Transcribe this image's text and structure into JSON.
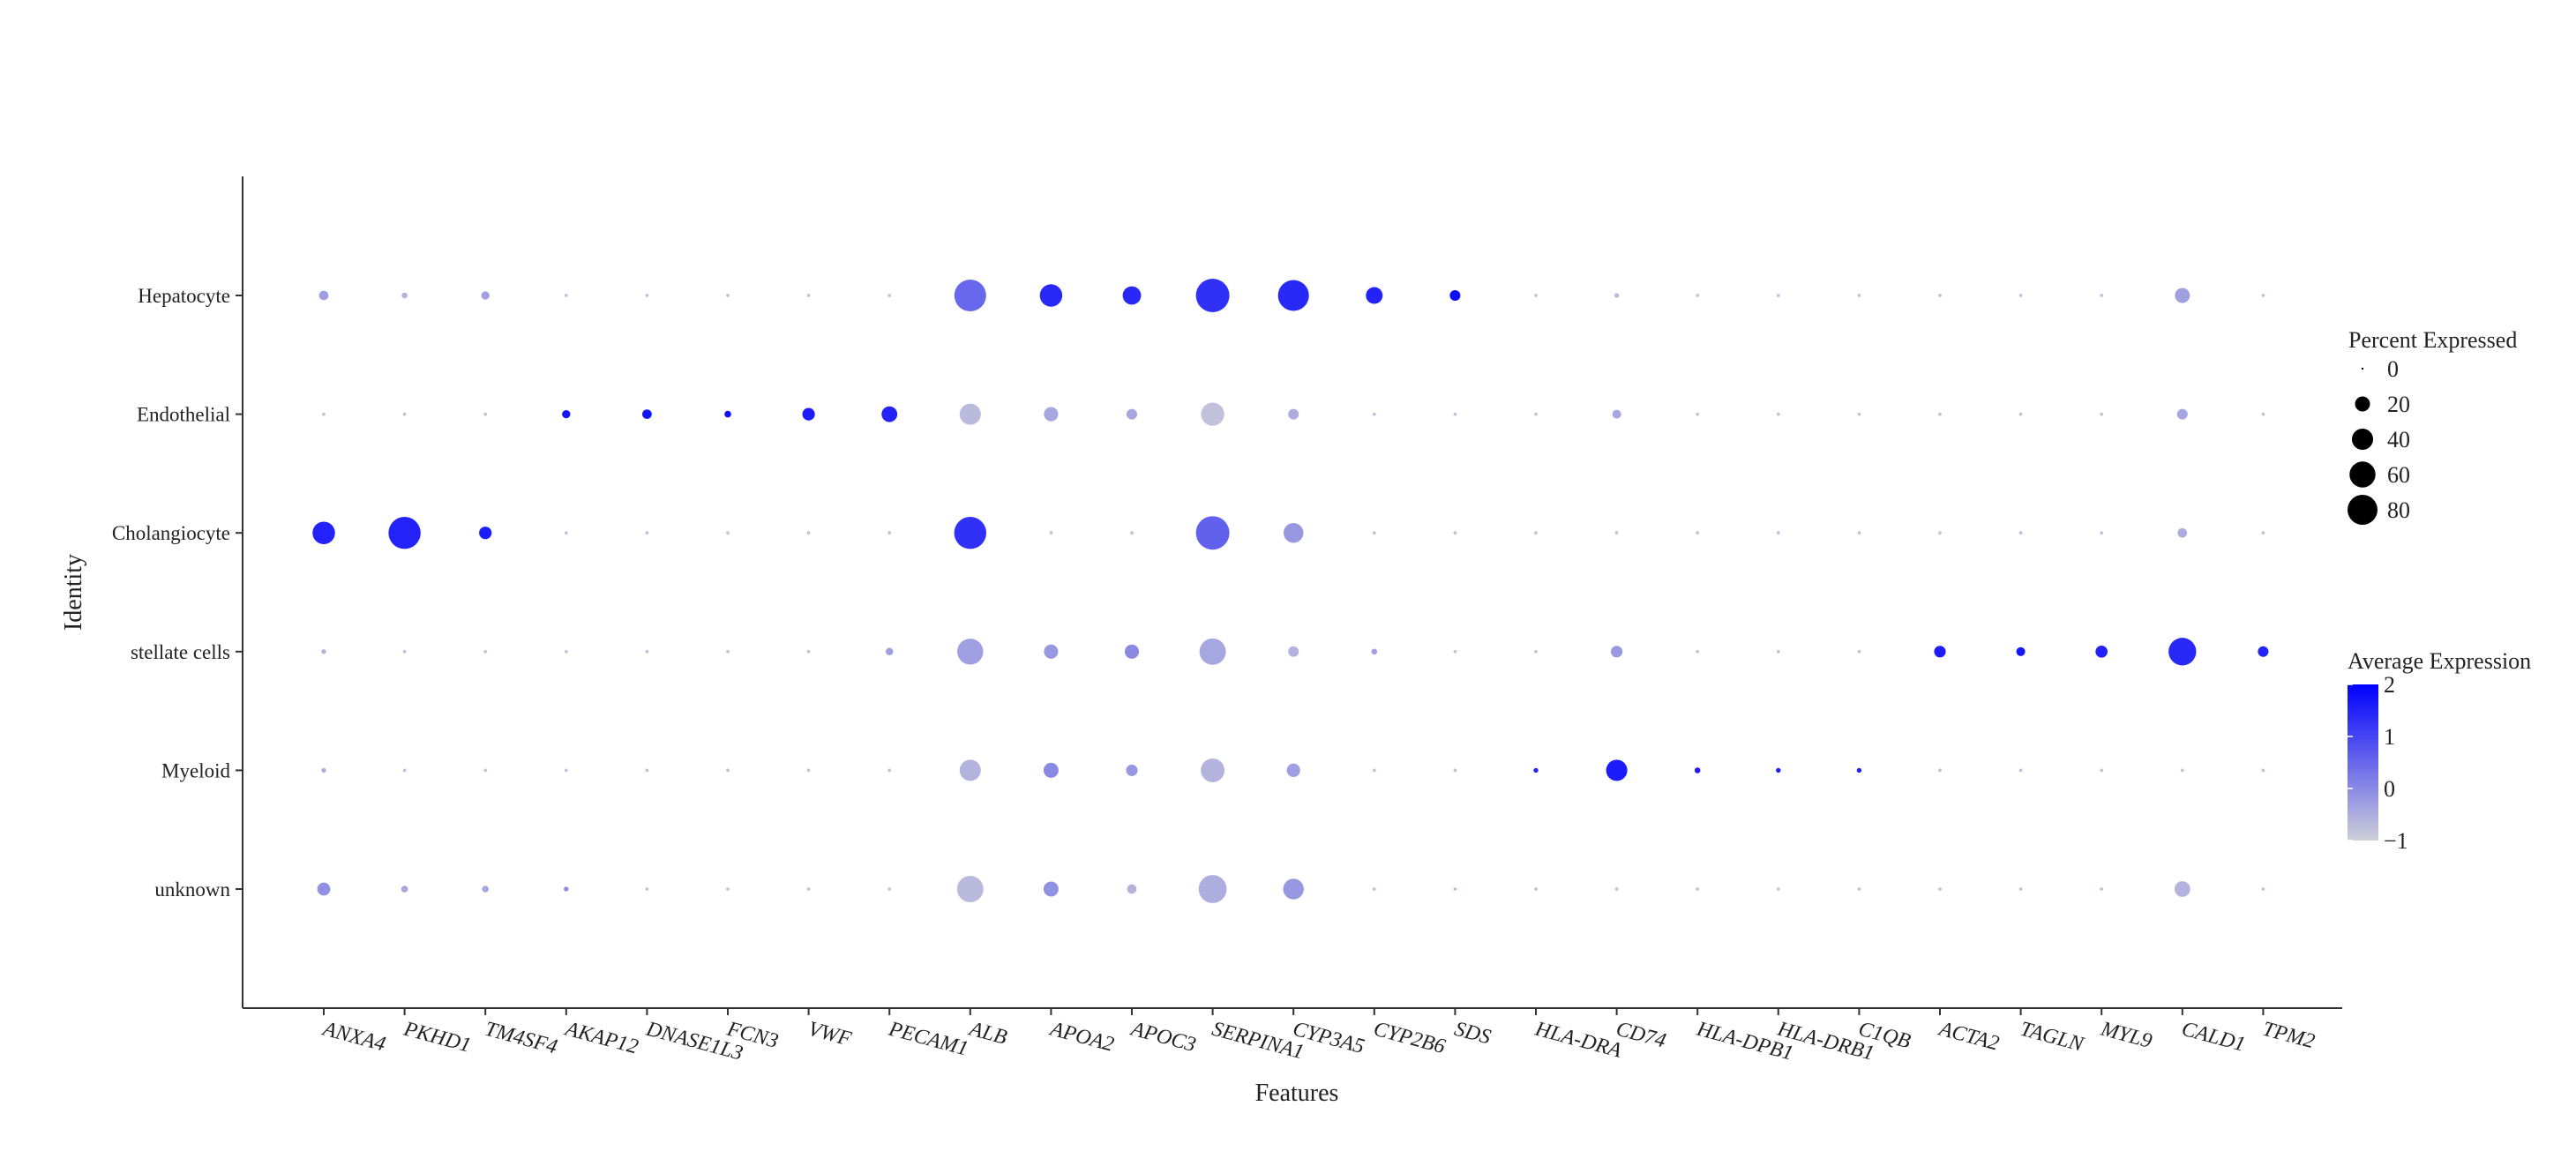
{
  "chart_data": {
    "type": "dotplot",
    "xlabel": "Features",
    "ylabel": "Identity",
    "features": [
      "ANXA4",
      "PKHD1",
      "TM4SF4",
      "AKAP12",
      "DNASE1L3",
      "FCN3",
      "VWF",
      "PECAM1",
      "ALB",
      "APOA2",
      "APOC3",
      "SERPINA1",
      "CYP3A5",
      "CYP2B6",
      "SDS",
      "HLA-DRA",
      "CD74",
      "HLA-DPB1",
      "HLA-DRB1",
      "C1QB",
      "ACTA2",
      "TAGLN",
      "MYL9",
      "CALD1",
      "TPM2"
    ],
    "identities": [
      "Hepatocyte",
      "Endothelial",
      "Cholangiocyte",
      "stellate cells",
      "Myeloid",
      "unknown"
    ],
    "pct_expressed": [
      [
        8,
        3,
        6,
        1,
        1,
        1,
        1,
        1,
        90,
        45,
        30,
        100,
        85,
        25,
        10,
        1,
        2,
        1,
        1,
        1,
        1,
        1,
        1,
        20,
        1
      ],
      [
        1,
        1,
        1,
        6,
        8,
        4,
        14,
        22,
        40,
        18,
        10,
        48,
        10,
        1,
        1,
        1,
        7,
        1,
        1,
        1,
        1,
        1,
        1,
        10,
        1
      ],
      [
        45,
        92,
        14,
        1,
        1,
        1,
        1,
        1,
        92,
        1,
        1,
        100,
        35,
        1,
        1,
        1,
        1,
        1,
        1,
        1,
        1,
        1,
        1,
        8,
        1
      ],
      [
        2,
        1,
        1,
        1,
        1,
        1,
        1,
        5,
        60,
        18,
        18,
        62,
        10,
        3,
        1,
        1,
        12,
        1,
        1,
        1,
        12,
        7,
        13,
        68,
        10
      ],
      [
        2,
        1,
        1,
        1,
        1,
        1,
        1,
        1,
        40,
        20,
        12,
        50,
        16,
        1,
        1,
        2,
        40,
        3,
        2,
        2,
        1,
        1,
        1,
        1,
        1
      ],
      [
        15,
        4,
        4,
        2,
        1,
        1,
        1,
        1,
        62,
        20,
        8,
        70,
        38,
        1,
        1,
        1,
        1,
        1,
        1,
        1,
        1,
        1,
        1,
        22,
        1
      ]
    ],
    "avg_expression": [
      [
        -0.3,
        -0.6,
        -0.3,
        -0.8,
        -0.8,
        -0.8,
        -0.8,
        -0.8,
        0.5,
        1.4,
        1.4,
        1.3,
        1.4,
        1.5,
        1.8,
        -0.8,
        -0.7,
        -0.8,
        -0.8,
        -0.8,
        -0.8,
        -0.8,
        -0.8,
        -0.3,
        -0.8
      ],
      [
        -0.8,
        -0.8,
        -0.8,
        1.7,
        1.7,
        1.8,
        1.6,
        1.5,
        -0.7,
        -0.4,
        -0.4,
        -0.8,
        -0.5,
        -0.8,
        -0.8,
        -0.8,
        -0.4,
        -0.8,
        -0.8,
        -0.8,
        -0.8,
        -0.8,
        -0.8,
        -0.4,
        -0.8
      ],
      [
        1.5,
        1.5,
        1.6,
        -0.8,
        -0.8,
        -0.8,
        -0.8,
        -0.8,
        1.3,
        -0.8,
        -0.8,
        0.6,
        -0.2,
        -0.8,
        -0.8,
        -0.8,
        -0.8,
        -0.8,
        -0.8,
        -0.8,
        -0.8,
        -0.8,
        -0.8,
        -0.5,
        -0.8
      ],
      [
        -0.6,
        -0.8,
        -0.8,
        -0.8,
        -0.8,
        -0.8,
        -0.8,
        -0.3,
        -0.3,
        -0.2,
        0.0,
        -0.4,
        -0.6,
        -0.3,
        -0.8,
        -0.8,
        -0.2,
        -0.8,
        -0.8,
        -0.8,
        1.6,
        1.7,
        1.5,
        1.4,
        1.5
      ],
      [
        -0.5,
        -0.8,
        -0.8,
        -0.8,
        -0.8,
        -0.8,
        -0.8,
        -0.8,
        -0.6,
        0.0,
        -0.2,
        -0.6,
        -0.3,
        -0.8,
        -0.8,
        1.5,
        1.6,
        1.6,
        1.6,
        1.6,
        -0.8,
        -0.8,
        -0.8,
        -0.8,
        -0.8
      ],
      [
        -0.1,
        -0.4,
        -0.4,
        0.0,
        -0.8,
        -0.8,
        -0.8,
        -0.8,
        -0.7,
        -0.1,
        -0.6,
        -0.5,
        -0.2,
        -0.8,
        -0.8,
        -0.8,
        -0.8,
        -0.8,
        -0.8,
        -0.8,
        -0.8,
        -0.8,
        -0.8,
        -0.6,
        -0.8
      ]
    ],
    "legend_size": {
      "title": "Percent Expressed",
      "labels": [
        "0",
        "20",
        "40",
        "60",
        "80"
      ],
      "values": [
        0,
        20,
        40,
        60,
        80
      ]
    },
    "legend_color": {
      "title": "Average Expression",
      "labels": [
        "2",
        "1",
        "0",
        "−1"
      ],
      "values": [
        2,
        1,
        0,
        -1
      ],
      "range": [
        -1,
        2
      ],
      "low_color": "#cfcfd8",
      "high_color": "#0000ff"
    },
    "grid": false,
    "legend_placement": "right"
  }
}
